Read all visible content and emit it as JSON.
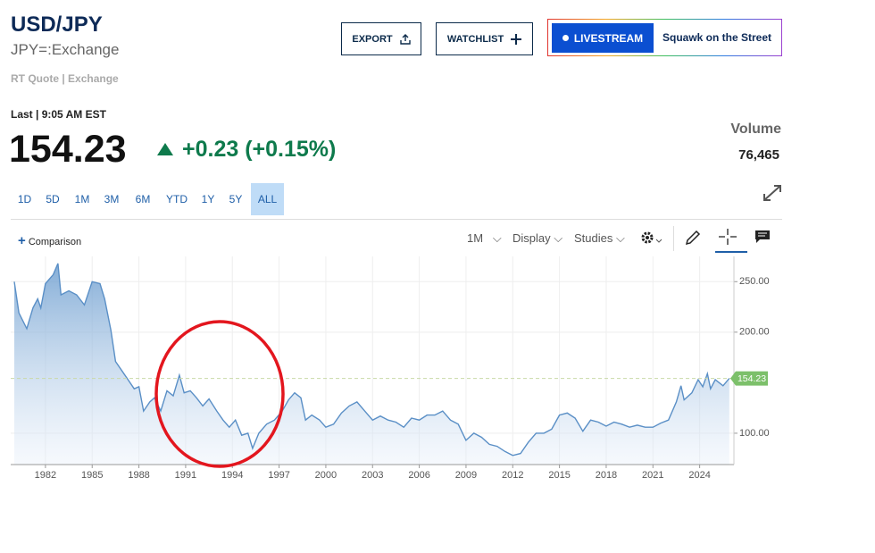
{
  "header": {
    "symbol": "USD/JPY",
    "exchange": "JPY=:Exchange",
    "quote_type": "RT Quote | Exchange"
  },
  "buttons": {
    "export": "EXPORT",
    "watchlist": "WATCHLIST",
    "livestream": "LIVESTREAM",
    "show": "Squawk on the Street"
  },
  "quote": {
    "last_time": "Last | 9:05 AM EST",
    "price": "154.23",
    "change": "+0.23 (+0.15%)",
    "volume_label": "Volume",
    "volume": "76,465"
  },
  "ranges": [
    "1D",
    "5D",
    "1M",
    "3M",
    "6M",
    "YTD",
    "1Y",
    "5Y",
    "ALL"
  ],
  "active_range": "ALL",
  "toolbar": {
    "comparison": "Comparison",
    "interval": "1M",
    "display": "Display",
    "studies": "Studies"
  },
  "chart_data": {
    "type": "area",
    "x": [
      1980.0,
      1980.3,
      1980.8,
      1981.2,
      1981.5,
      1981.7,
      1982.0,
      1982.5,
      1982.8,
      1983.0,
      1983.5,
      1984.0,
      1984.5,
      1985.0,
      1985.5,
      1985.8,
      1986.2,
      1986.5,
      1986.9,
      1987.3,
      1987.7,
      1988.0,
      1988.3,
      1988.7,
      1989.0,
      1989.4,
      1989.8,
      1990.2,
      1990.6,
      1990.9,
      1991.3,
      1991.7,
      1992.1,
      1992.5,
      1993.0,
      1993.4,
      1993.8,
      1994.2,
      1994.6,
      1995.0,
      1995.3,
      1995.7,
      1996.2,
      1996.7,
      1997.2,
      1997.6,
      1998.0,
      1998.4,
      1998.7,
      1999.1,
      1999.6,
      2000.0,
      2000.5,
      2001.0,
      2001.5,
      2002.0,
      2002.5,
      2003.0,
      2003.5,
      2004.0,
      2004.5,
      2005.0,
      2005.5,
      2006.0,
      2006.5,
      2007.0,
      2007.5,
      2008.0,
      2008.5,
      2009.0,
      2009.5,
      2010.0,
      2010.5,
      2011.0,
      2011.5,
      2012.0,
      2012.5,
      2013.0,
      2013.5,
      2014.0,
      2014.5,
      2015.0,
      2015.5,
      2016.0,
      2016.5,
      2017.0,
      2017.5,
      2018.0,
      2018.5,
      2019.0,
      2019.5,
      2020.0,
      2020.5,
      2021.0,
      2021.5,
      2022.0,
      2022.5,
      2022.8,
      2023.0,
      2023.5,
      2023.9,
      2024.2,
      2024.5,
      2024.7,
      2025.0,
      2025.5,
      2025.9
    ],
    "series": [
      {
        "color": "#5a8fc6",
        "values": [
          250,
          219,
          203.5,
          224,
          233,
          224,
          248,
          257,
          268,
          237,
          241,
          237,
          227,
          250,
          248,
          233,
          202,
          171,
          162,
          153,
          144,
          146,
          122,
          131,
          135,
          122,
          142,
          137,
          157.5,
          140,
          142,
          135,
          127,
          134,
          122,
          113,
          106,
          113,
          98,
          100,
          85,
          100,
          109,
          113,
          122,
          133,
          140,
          135,
          113,
          118,
          113,
          106,
          109,
          120,
          127,
          131,
          122,
          113,
          117,
          113,
          111,
          106,
          115,
          113,
          118,
          118,
          122,
          113,
          109,
          93,
          100,
          96,
          89,
          87,
          82,
          78,
          80,
          91,
          100,
          100,
          104,
          118,
          120,
          115,
          102,
          113,
          111,
          107,
          111,
          109,
          106,
          108,
          106,
          106,
          110,
          113,
          131,
          147,
          133,
          140,
          153,
          146,
          159,
          144,
          153,
          147,
          154.23
        ]
      }
    ],
    "last_price": 154.23,
    "xlim": [
      1979.77,
      2026.2
    ],
    "xticks": [
      1982,
      1985,
      1988,
      1991,
      1994,
      1997,
      2000,
      2003,
      2006,
      2009,
      2012,
      2015,
      2018,
      2021,
      2024
    ],
    "ylim": [
      69,
      275
    ],
    "yticks": [
      {
        "value": 100,
        "label": "100.00"
      },
      {
        "value": 200,
        "label": "200.00"
      },
      {
        "value": 250,
        "label": "250.00"
      }
    ],
    "grid": true
  }
}
